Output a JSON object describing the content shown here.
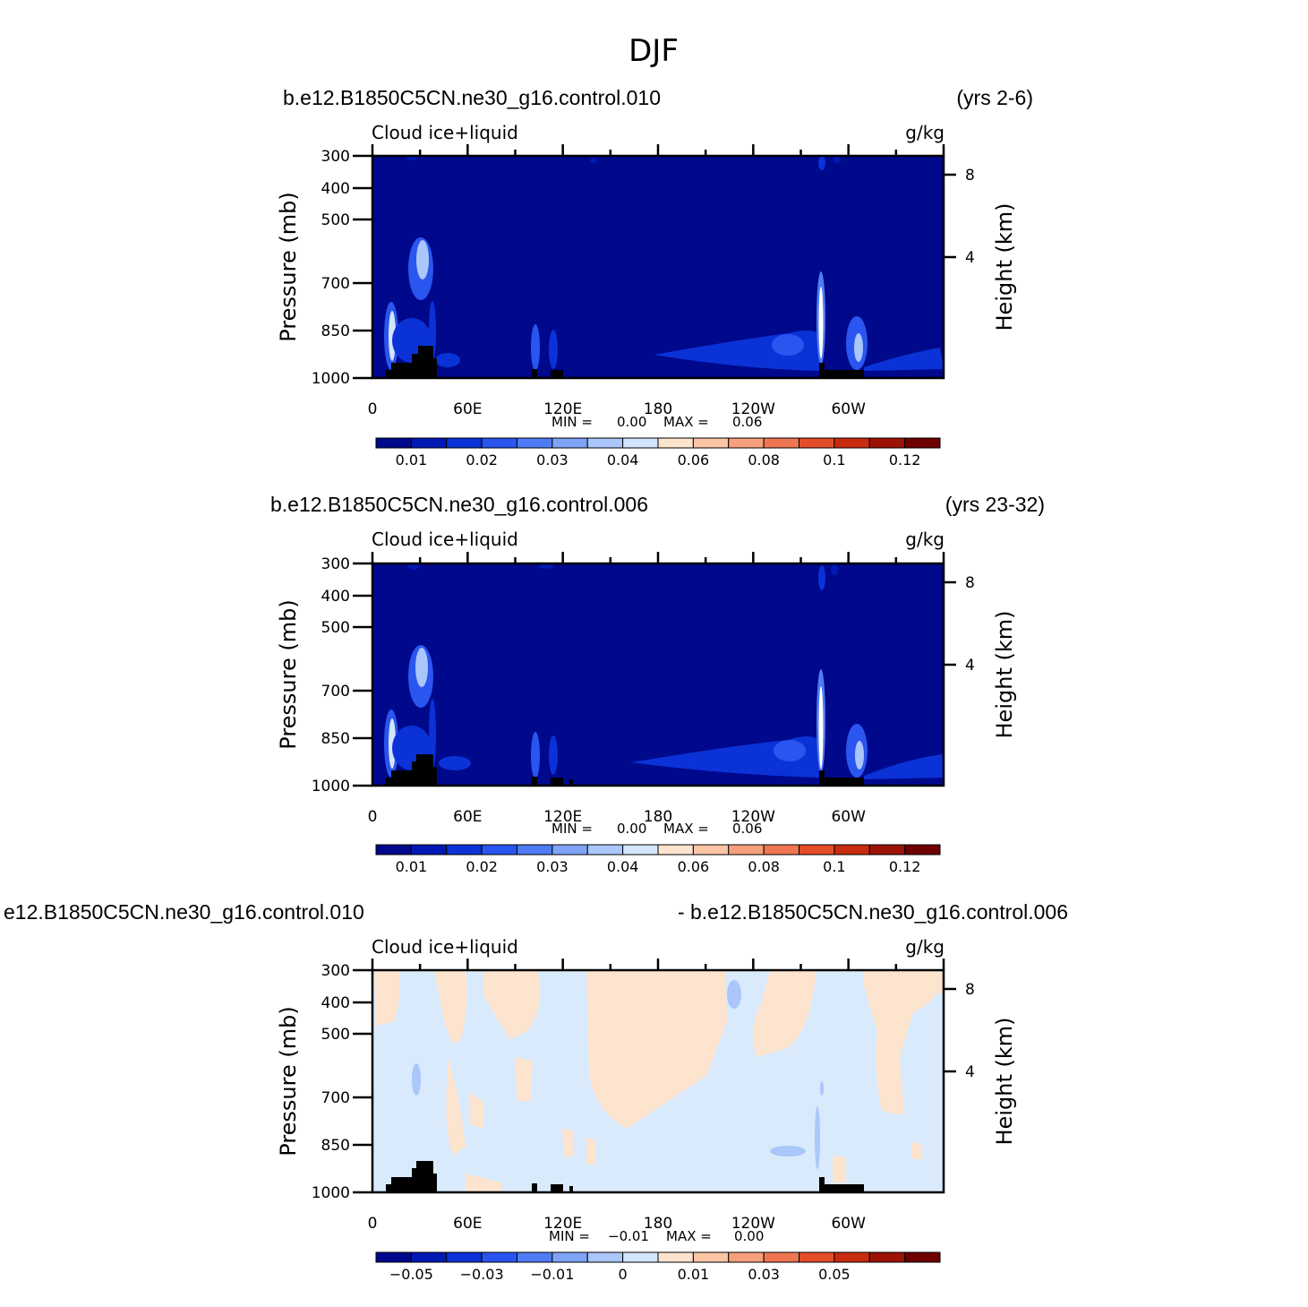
{
  "figure": {
    "title": "DJF"
  },
  "colors": {
    "field_background": "#00088c",
    "diff_background": "#d9eafc",
    "land": "#000000"
  },
  "chart_data": [
    {
      "type": "heatmap",
      "case": "b.e12.B1850C5CN.ne30_g16.control.010",
      "years": "(yrs 2-6)",
      "variable": "Cloud ice+liquid",
      "units": "g/kg",
      "ylabel": "Pressure (mb)",
      "y2label": "Height (km)",
      "xticks": [
        "0",
        "60E",
        "120E",
        "180",
        "120W",
        "60W"
      ],
      "yticks": [
        "300",
        "400",
        "500",
        "700",
        "850",
        "1000"
      ],
      "y2ticks": [
        "8",
        "4"
      ],
      "min_label": "MIN =",
      "min": "0.00",
      "max_label": "MAX =",
      "max": "0.06",
      "colorbar_labels": [
        "0.01",
        "0.02",
        "0.03",
        "0.04",
        "0.06",
        "0.08",
        "0.1",
        "0.12"
      ]
    },
    {
      "type": "heatmap",
      "case": "b.e12.B1850C5CN.ne30_g16.control.006",
      "years": "(yrs 23-32)",
      "variable": "Cloud ice+liquid",
      "units": "g/kg",
      "ylabel": "Pressure (mb)",
      "y2label": "Height (km)",
      "xticks": [
        "0",
        "60E",
        "120E",
        "180",
        "120W",
        "60W"
      ],
      "yticks": [
        "300",
        "400",
        "500",
        "700",
        "850",
        "1000"
      ],
      "y2ticks": [
        "8",
        "4"
      ],
      "min_label": "MIN =",
      "min": "0.00",
      "max_label": "MAX =",
      "max": "0.06",
      "colorbar_labels": [
        "0.01",
        "0.02",
        "0.03",
        "0.04",
        "0.06",
        "0.08",
        "0.1",
        "0.12"
      ]
    },
    {
      "type": "heatmap",
      "case": "e12.B1850C5CN.ne30_g16.control.010",
      "case_right": "- b.e12.B1850C5CN.ne30_g16.control.006",
      "variable": "Cloud ice+liquid",
      "units": "g/kg",
      "ylabel": "Pressure (mb)",
      "y2label": "Height (km)",
      "xticks": [
        "0",
        "60E",
        "120E",
        "180",
        "120W",
        "60W"
      ],
      "yticks": [
        "300",
        "400",
        "500",
        "700",
        "850",
        "1000"
      ],
      "y2ticks": [
        "8",
        "4"
      ],
      "min_label": "MIN =",
      "min": "−0.01",
      "max_label": "MAX =",
      "max": "0.00",
      "colorbar_labels": [
        "−0.05",
        "−0.03",
        "−0.01",
        "0",
        "0.01",
        "0.03",
        "0.05"
      ]
    }
  ],
  "colorbar_colors": [
    "#00088c",
    "#0019b4",
    "#0a32d7",
    "#2855ef",
    "#4f7cf5",
    "#7ea3f7",
    "#aac6fa",
    "#d3e5fc",
    "#fde4cf",
    "#fbc5a6",
    "#f6a07b",
    "#ef7650",
    "#e44d2a",
    "#c92b10",
    "#9c1305",
    "#6e0000"
  ]
}
